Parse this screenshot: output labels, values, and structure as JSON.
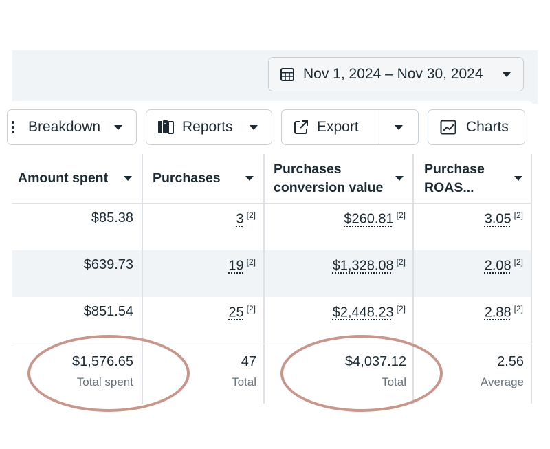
{
  "date_range": {
    "label": "Nov 1, 2024 – Nov 30, 2024"
  },
  "toolbar": {
    "breakdown": "Breakdown",
    "reports": "Reports",
    "export": "Export",
    "charts": "Charts"
  },
  "columns": [
    {
      "label": "Amount spent"
    },
    {
      "label": "Purchases"
    },
    {
      "label": "Purchases conversion value"
    },
    {
      "label": "Purchase ROAS..."
    }
  ],
  "rows": [
    {
      "amount_spent": "$85.38",
      "purchases": "3",
      "conversion_value": "$260.81",
      "roas": "3.05"
    },
    {
      "amount_spent": "$639.73",
      "purchases": "19",
      "conversion_value": "$1,328.08",
      "roas": "2.08"
    },
    {
      "amount_spent": "$851.54",
      "purchases": "25",
      "conversion_value": "$2,448.23",
      "roas": "2.88"
    }
  ],
  "footnote": "[2]",
  "totals": {
    "amount_spent": {
      "value": "$1,576.65",
      "label": "Total spent"
    },
    "purchases": {
      "value": "47",
      "label": "Total"
    },
    "conversion_value": {
      "value": "$4,037.12",
      "label": "Total"
    },
    "roas": {
      "value": "2.56",
      "label": "Average"
    }
  },
  "colors": {
    "highlight": "#c9968b",
    "row_alt": "#f1f4f7",
    "border": "#c9ced3"
  }
}
